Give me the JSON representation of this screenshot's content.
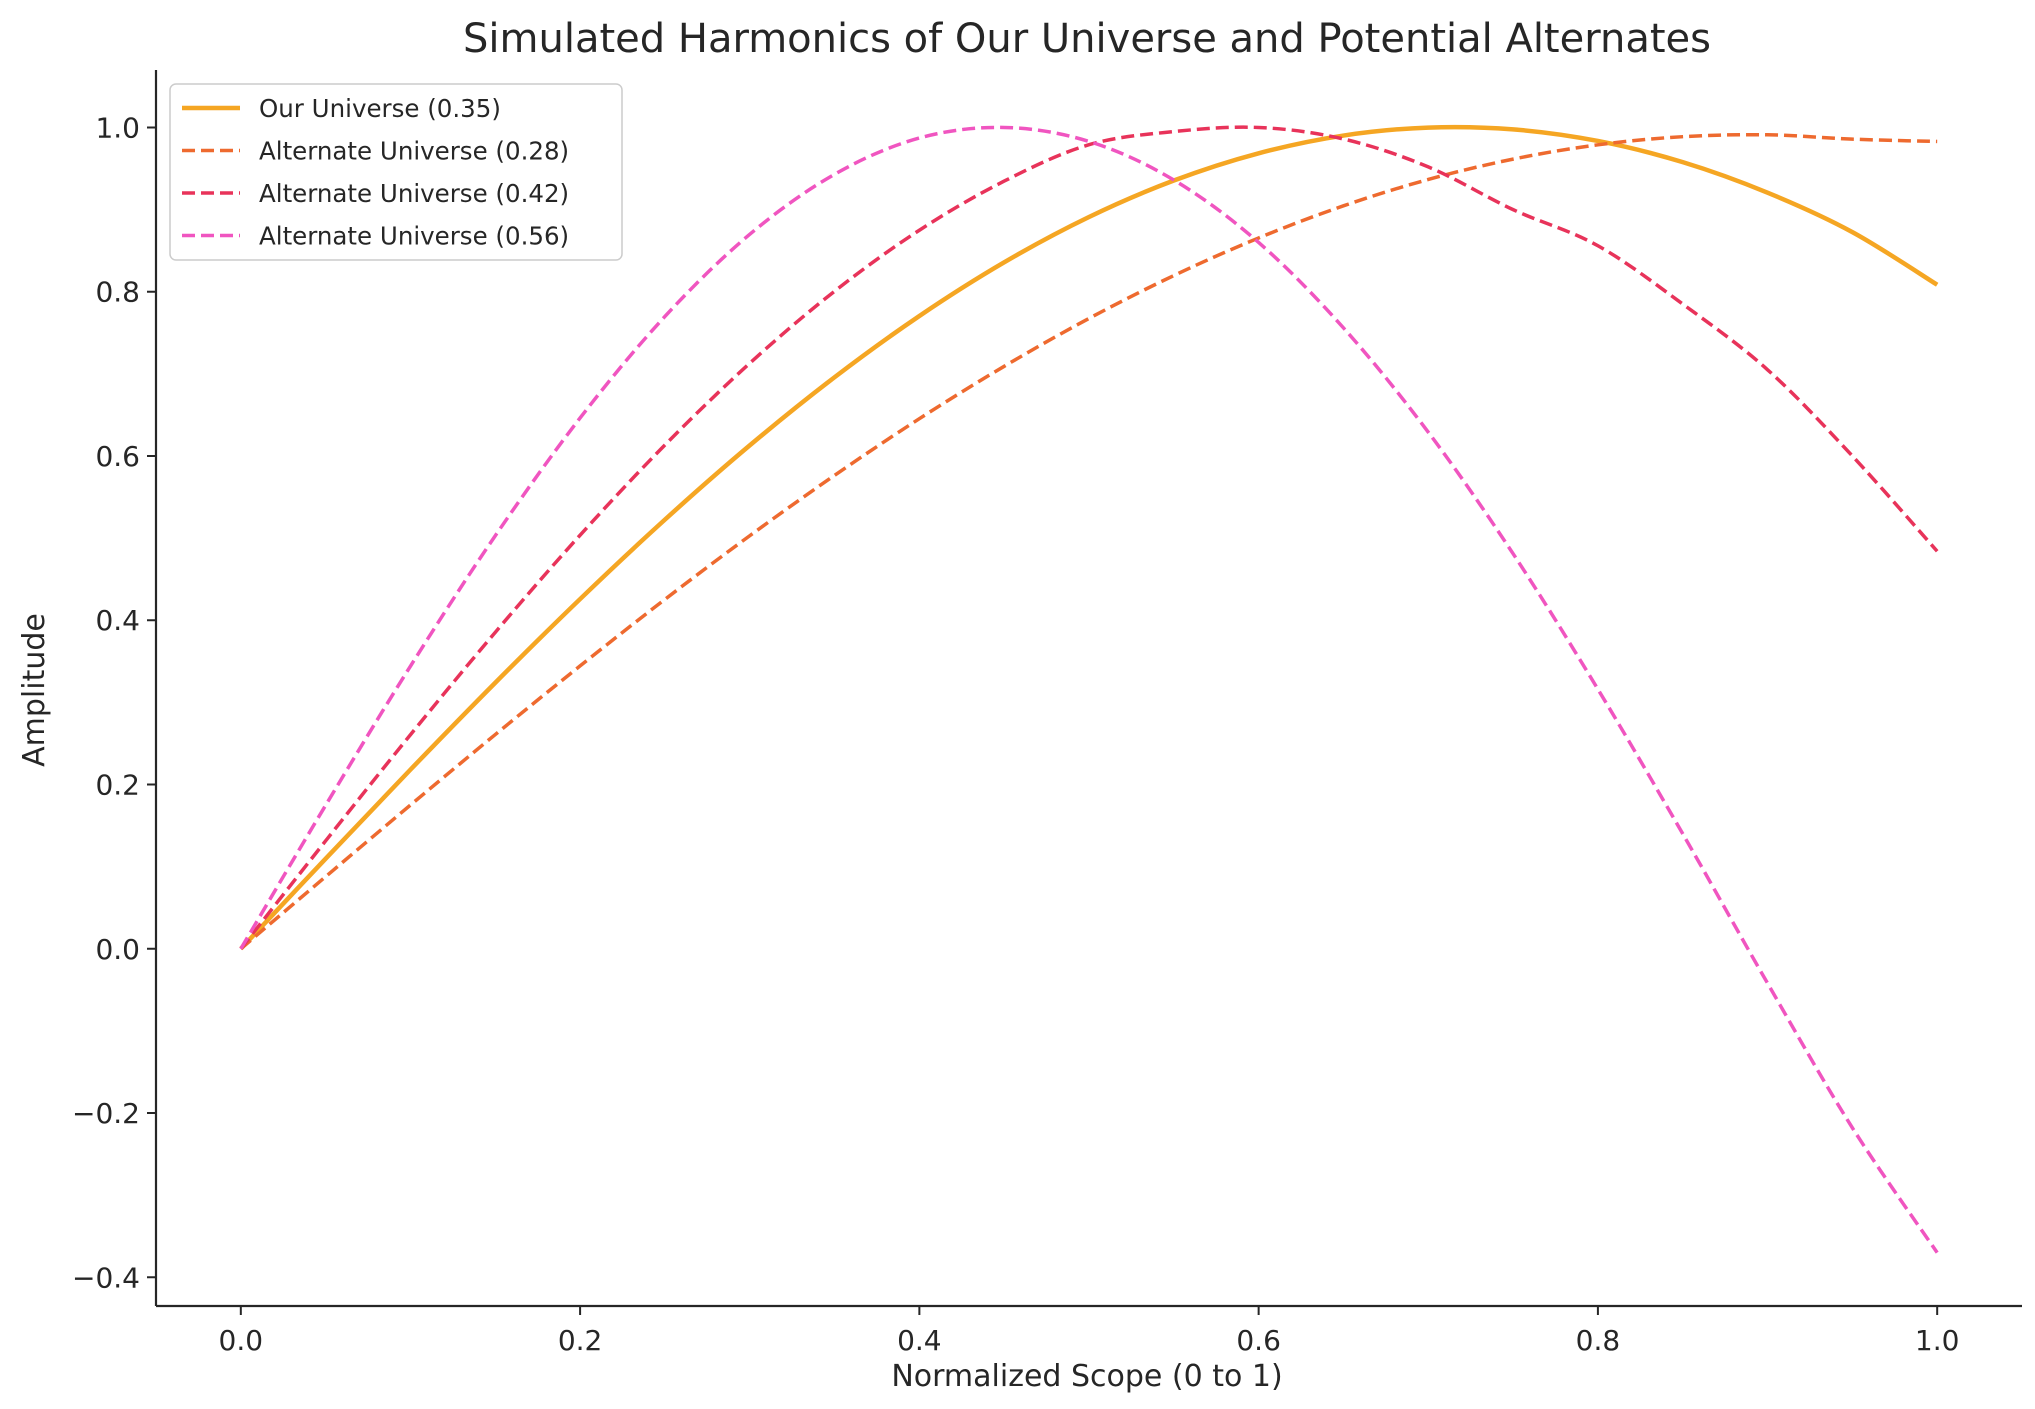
{
  "chart_data": {
    "type": "line",
    "title": "Simulated Harmonics of Our Universe and Potential Alternates",
    "xlabel": "Normalized Scope (0 to 1)",
    "ylabel": "Amplitude",
    "xlim": [
      -0.05,
      1.05
    ],
    "ylim": [
      -0.435,
      1.07
    ],
    "xticks": [
      0.0,
      0.2,
      0.4,
      0.6,
      0.8,
      1.0
    ],
    "xtick_labels": [
      "0.0",
      "0.2",
      "0.4",
      "0.6",
      "0.8",
      "1.0"
    ],
    "yticks": [
      -0.4,
      -0.2,
      0.0,
      0.2,
      0.4,
      0.6,
      0.8,
      1.0
    ],
    "ytick_labels": [
      "−0.4",
      "−0.2",
      "0.0",
      "0.2",
      "0.4",
      "0.6",
      "0.8",
      "1.0"
    ],
    "grid": false,
    "legend_position": "top-left",
    "x": [
      0.0,
      0.05,
      0.1,
      0.15,
      0.2,
      0.25,
      0.3,
      0.35,
      0.4,
      0.45,
      0.5,
      0.55,
      0.6,
      0.65,
      0.7,
      0.75,
      0.8,
      0.85,
      0.9,
      0.95,
      1.0
    ],
    "series": [
      {
        "name": "Our Universe (0.35)",
        "color": "#f5a623",
        "style": "solid",
        "values": [
          0.0,
          0.1097,
          0.2181,
          0.3239,
          0.4258,
          0.5225,
          0.6129,
          0.6959,
          0.7705,
          0.8358,
          0.891,
          0.9354,
          0.9686,
          0.9902,
          0.9999,
          0.9977,
          0.9836,
          0.9578,
          0.9206,
          0.8726,
          0.8085
        ]
      },
      {
        "name": "Alternate Universe (0.28)",
        "color": "#ee6a2f",
        "style": "dashed",
        "values": [
          0.0,
          0.0878,
          0.175,
          0.2608,
          0.3444,
          0.4254,
          0.5029,
          0.5764,
          0.6454,
          0.7092,
          0.7675,
          0.8197,
          0.8655,
          0.9046,
          0.9367,
          0.9615,
          0.9789,
          0.9888,
          0.9911,
          0.9858,
          0.983
        ]
      },
      {
        "name": "Alternate Universe (0.42)",
        "color": "#e8335a",
        "style": "dashed",
        "values": [
          0.0,
          0.1314,
          0.2606,
          0.3853,
          0.5036,
          0.6134,
          0.7129,
          0.8006,
          0.8749,
          0.9347,
          0.979,
          0.995,
          1.0,
          0.986,
          0.952,
          0.9,
          0.856,
          0.785,
          0.705,
          0.6,
          0.484
        ]
      },
      {
        "name": "Alternate Universe (0.56)",
        "color": "#f055c0",
        "style": "dashed",
        "values": [
          0.0,
          0.1747,
          0.3441,
          0.5029,
          0.6463,
          0.7699,
          0.8699,
          0.943,
          0.9872,
          1.0,
          0.983,
          0.936,
          0.86,
          0.756,
          0.629,
          0.481,
          0.316,
          0.14,
          -0.042,
          -0.218,
          -0.37
        ]
      }
    ]
  }
}
